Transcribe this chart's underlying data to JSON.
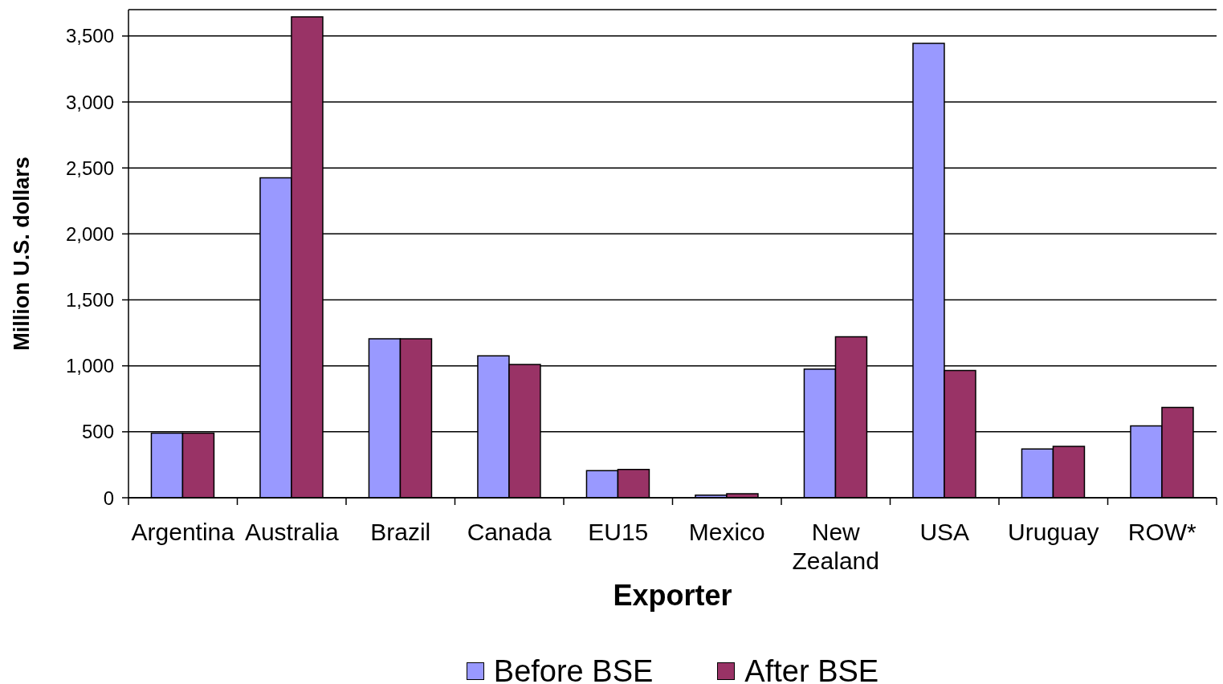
{
  "chart_data": {
    "type": "bar",
    "xlabel": "Exporter",
    "ylabel": "Million U.S. dollars",
    "categories": [
      "Argentina",
      "Australia",
      "Brazil",
      "Canada",
      "EU15",
      "Mexico",
      "New Zealand",
      "USA",
      "Uruguay",
      "ROW*"
    ],
    "series": [
      {
        "name": "Before BSE",
        "color": "#9999ff",
        "values": [
          490,
          2425,
          1205,
          1075,
          205,
          20,
          975,
          3445,
          370,
          545
        ]
      },
      {
        "name": "After BSE",
        "color": "#993366",
        "values": [
          490,
          3645,
          1205,
          1010,
          215,
          30,
          1220,
          965,
          390,
          685
        ]
      }
    ],
    "ylim": [
      0,
      3700
    ],
    "yticks": [
      0,
      500,
      {
        "value": 1000,
        "label": "1,000"
      },
      {
        "value": 1500,
        "label": "1,500"
      },
      {
        "value": 2000,
        "label": "2,000"
      },
      {
        "value": 2500,
        "label": "2,500"
      },
      {
        "value": 3000,
        "label": "3,000"
      },
      {
        "value": 3500,
        "label": "3,500"
      }
    ],
    "grid": "y",
    "legend": "bottom"
  }
}
